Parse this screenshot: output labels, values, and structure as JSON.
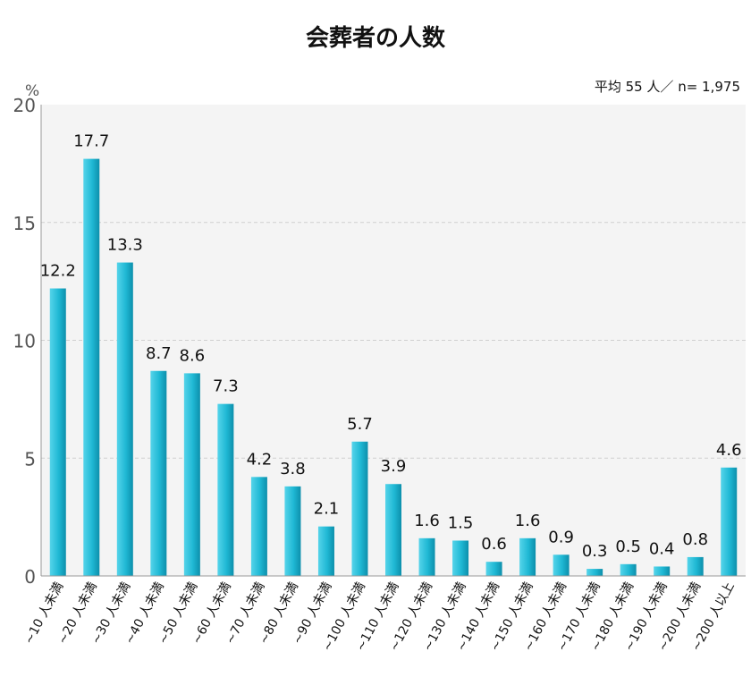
{
  "chart_data": {
    "type": "bar",
    "title": "会葬者の人数",
    "note": "平均 55 人／ n= 1,975",
    "ylabel": "%",
    "xlabel": "",
    "ylim": [
      0,
      20
    ],
    "yticks": [
      0,
      5,
      10,
      15,
      20
    ],
    "grid": true,
    "bar_color": "#1fb8d4",
    "categories": [
      "~10 人未満",
      "~20 人未満",
      "~30 人未満",
      "~40 人未満",
      "~50 人未満",
      "~60 人未満",
      "~70 人未満",
      "~80 人未満",
      "~90 人未満",
      "~100 人未満",
      "~110 人未満",
      "~120 人未満",
      "~130 人未満",
      "~140 人未満",
      "~150 人未満",
      "~160 人未満",
      "~170 人未満",
      "~180 人未満",
      "~190 人未満",
      "~200 人未満",
      "~200 人以上"
    ],
    "values": [
      12.2,
      17.7,
      13.3,
      8.7,
      8.6,
      7.3,
      4.2,
      3.8,
      2.1,
      5.7,
      3.9,
      1.6,
      1.5,
      0.6,
      1.6,
      0.9,
      0.3,
      0.5,
      0.4,
      0.8,
      4.6
    ],
    "value_labels": [
      "12.2",
      "17.7",
      "13.3",
      "8.7",
      "8.6",
      "7.3",
      "4.2",
      "3.8",
      "2.1",
      "5.7",
      "3.9",
      "1.6",
      "1.5",
      "0.6",
      "1.6",
      "0.9",
      "0.3",
      "0.5",
      "0.4",
      "0.8",
      "4.6"
    ]
  }
}
